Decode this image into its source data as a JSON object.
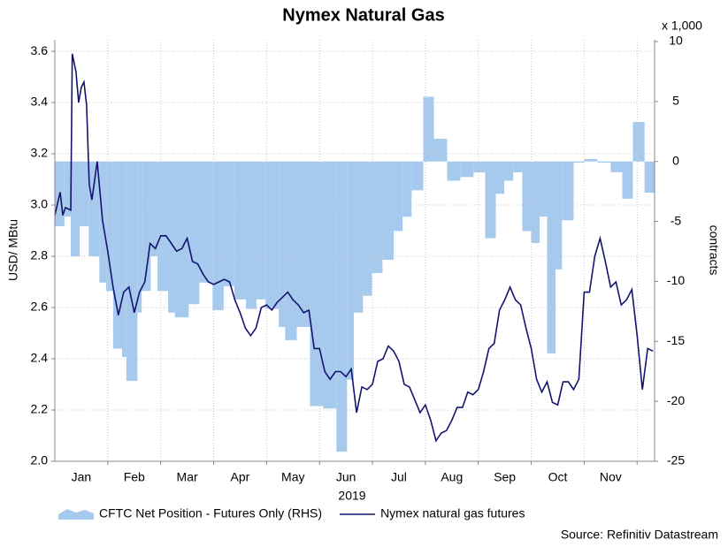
{
  "chart_data": {
    "type": "line",
    "title": "Nymex Natural Gas",
    "ylabel": "USD/ MBtu",
    "y2label": "contracts",
    "y2_unit_label": "x 1,000",
    "xlabel": "2019",
    "source": "Source: Refinitiv Datastream",
    "xlim": [
      0,
      11.33
    ],
    "xticks": [
      {
        "value": 0.5,
        "label": "Jan"
      },
      {
        "value": 1.5,
        "label": "Feb"
      },
      {
        "value": 2.5,
        "label": "Mar"
      },
      {
        "value": 3.5,
        "label": "Apr"
      },
      {
        "value": 4.5,
        "label": "May"
      },
      {
        "value": 5.5,
        "label": "Jun"
      },
      {
        "value": 6.5,
        "label": "Jul"
      },
      {
        "value": 7.5,
        "label": "Aug"
      },
      {
        "value": 8.5,
        "label": "Sep"
      },
      {
        "value": 9.5,
        "label": "Oct"
      },
      {
        "value": 10.5,
        "label": "Nov"
      }
    ],
    "xgridlines": [
      1,
      2,
      3,
      4,
      5,
      6,
      7,
      8,
      9,
      10,
      11
    ],
    "ylim": [
      2,
      3.645
    ],
    "yticks": [
      {
        "value": 2,
        "label": "2.0"
      },
      2.2,
      2.4,
      2.6,
      2.8,
      {
        "value": 3,
        "label": "3.0"
      },
      3.2,
      3.4,
      3.6
    ],
    "y2lim": [
      -25,
      10.15
    ],
    "y2ticks": [
      -25,
      -20,
      -15,
      -10,
      -5,
      0,
      5,
      10
    ],
    "grid": true,
    "legend": "bottom",
    "series": [
      {
        "name": "CFTC Net Position - Futures Only (RHS)",
        "type": "area",
        "axis": "y2",
        "color": "#a6c9ee",
        "x": [
          0,
          0.18,
          0.3,
          0.47,
          0.64,
          0.84,
          0.97,
          1.1,
          1.27,
          1.35,
          1.56,
          1.64,
          1.81,
          1.94,
          2.14,
          2.27,
          2.53,
          2.73,
          2.98,
          3.19,
          3.39,
          3.61,
          3.81,
          3.98,
          4.23,
          4.35,
          4.57,
          4.82,
          5.07,
          5.32,
          5.52,
          5.65,
          5.82,
          5.99,
          6.19,
          6.4,
          6.57,
          6.74,
          6.96,
          7.16,
          7.41,
          7.66,
          7.91,
          8.13,
          8.33,
          8.49,
          8.66,
          8.83,
          9.0,
          9.16,
          9.3,
          9.46,
          9.58,
          9.8,
          10.0,
          10.25,
          10.5,
          10.72,
          10.92,
          11.14
        ],
        "values": [
          -5.4,
          -4.6,
          -7.9,
          -5.4,
          -7.9,
          -10.1,
          -10.8,
          -15.6,
          -16.3,
          -18.3,
          -12.6,
          -10.8,
          -7.9,
          -10.8,
          -12.6,
          -13.0,
          -11.9,
          -10.1,
          -12.4,
          -10.4,
          -11.5,
          -12.3,
          -11.5,
          -12.3,
          -13.8,
          -14.9,
          -13.8,
          -20.4,
          -20.6,
          -24.2,
          -18.2,
          -12.6,
          -11.2,
          -9.3,
          -8.2,
          -5.8,
          -4.6,
          -2.4,
          5.4,
          1.9,
          -1.6,
          -1.3,
          -0.9,
          -6.4,
          -2.7,
          -1.6,
          -0.9,
          -5.8,
          -6.8,
          -4.6,
          -16.0,
          -9.0,
          -4.9,
          -0.1,
          0.2,
          -0.1,
          -0.9,
          -3.1,
          3.3,
          -2.6
        ]
      },
      {
        "name": "Nymex natural gas futures",
        "type": "line",
        "color": "#14146e",
        "x": [
          0,
          0.1,
          0.15,
          0.2,
          0.3,
          0.33,
          0.4,
          0.45,
          0.5,
          0.55,
          0.6,
          0.65,
          0.7,
          0.8,
          0.9,
          1.0,
          1.1,
          1.2,
          1.3,
          1.4,
          1.5,
          1.6,
          1.7,
          1.8,
          1.9,
          2.0,
          2.1,
          2.2,
          2.3,
          2.4,
          2.5,
          2.6,
          2.7,
          2.8,
          2.9,
          3.0,
          3.1,
          3.2,
          3.3,
          3.4,
          3.5,
          3.6,
          3.7,
          3.8,
          3.9,
          4.0,
          4.1,
          4.2,
          4.3,
          4.4,
          4.5,
          4.6,
          4.7,
          4.8,
          4.9,
          5.0,
          5.1,
          5.2,
          5.3,
          5.4,
          5.5,
          5.6,
          5.7,
          5.8,
          5.9,
          6.0,
          6.1,
          6.2,
          6.3,
          6.4,
          6.5,
          6.6,
          6.7,
          6.8,
          6.9,
          7.0,
          7.1,
          7.2,
          7.3,
          7.4,
          7.5,
          7.6,
          7.7,
          7.8,
          7.9,
          8.0,
          8.1,
          8.2,
          8.3,
          8.4,
          8.5,
          8.6,
          8.7,
          8.8,
          8.9,
          9.0,
          9.1,
          9.2,
          9.3,
          9.4,
          9.5,
          9.6,
          9.7,
          9.8,
          9.9,
          10.0,
          10.1,
          10.2,
          10.3,
          10.4,
          10.5,
          10.6,
          10.7,
          10.8,
          10.9,
          11.0,
          11.1,
          11.2,
          11.3
        ],
        "values": [
          2.96,
          3.05,
          2.96,
          2.99,
          2.98,
          3.59,
          3.52,
          3.4,
          3.46,
          3.48,
          3.39,
          3.08,
          3.02,
          3.17,
          2.94,
          2.82,
          2.68,
          2.57,
          2.66,
          2.68,
          2.58,
          2.66,
          2.7,
          2.85,
          2.83,
          2.88,
          2.88,
          2.85,
          2.82,
          2.83,
          2.87,
          2.78,
          2.77,
          2.73,
          2.7,
          2.69,
          2.7,
          2.71,
          2.7,
          2.63,
          2.58,
          2.52,
          2.49,
          2.52,
          2.6,
          2.61,
          2.59,
          2.62,
          2.64,
          2.66,
          2.63,
          2.61,
          2.58,
          2.59,
          2.44,
          2.44,
          2.35,
          2.32,
          2.35,
          2.35,
          2.33,
          2.36,
          2.19,
          2.29,
          2.28,
          2.3,
          2.39,
          2.4,
          2.45,
          2.43,
          2.39,
          2.3,
          2.29,
          2.24,
          2.19,
          2.22,
          2.16,
          2.08,
          2.11,
          2.12,
          2.16,
          2.21,
          2.21,
          2.27,
          2.26,
          2.28,
          2.35,
          2.44,
          2.46,
          2.59,
          2.63,
          2.68,
          2.63,
          2.61,
          2.52,
          2.44,
          2.32,
          2.27,
          2.31,
          2.23,
          2.22,
          2.31,
          2.31,
          2.28,
          2.32,
          2.66,
          2.66,
          2.8,
          2.87,
          2.78,
          2.68,
          2.7,
          2.61,
          2.63,
          2.67,
          2.49,
          2.28,
          2.44,
          2.43
        ]
      }
    ]
  }
}
